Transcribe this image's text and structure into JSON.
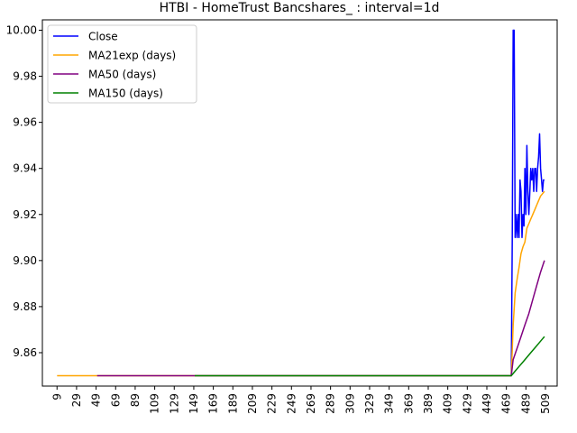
{
  "chart_data": {
    "type": "line",
    "title": "HTBI - HomeTrust Bancshares_ : interval=1d",
    "xlabel": "",
    "ylabel": "",
    "xlim": [
      -6,
      521
    ],
    "ylim": [
      9.8455,
      10.0045
    ],
    "x_ticks": [
      9,
      29,
      49,
      69,
      89,
      109,
      129,
      149,
      169,
      189,
      209,
      229,
      249,
      269,
      289,
      309,
      329,
      349,
      369,
      389,
      409,
      429,
      449,
      469,
      489,
      509
    ],
    "y_ticks": [
      9.86,
      9.88,
      9.9,
      9.92,
      9.94,
      9.96,
      9.98,
      10.0
    ],
    "y_tick_labels": [
      "9.86",
      "9.88",
      "9.90",
      "9.92",
      "9.94",
      "9.96",
      "9.98",
      "10.00"
    ],
    "grid": false,
    "legend": "top-left",
    "series": [
      {
        "name": "Close",
        "color": "#0000ff",
        "x": [
          474,
          475,
          476,
          477,
          478,
          479,
          480,
          481,
          482,
          483,
          484,
          485,
          486,
          487,
          488,
          489,
          490,
          491,
          492,
          493,
          494,
          495,
          496,
          497,
          498,
          499,
          500,
          501,
          502,
          503,
          504,
          505,
          506,
          507,
          508
        ],
        "values": [
          9.85,
          9.91,
          10.0,
          10.0,
          9.91,
          9.92,
          9.91,
          9.92,
          9.91,
          9.935,
          9.93,
          9.91,
          9.92,
          9.915,
          9.94,
          9.92,
          9.95,
          9.93,
          9.92,
          9.93,
          9.94,
          9.935,
          9.94,
          9.93,
          9.94,
          9.94,
          9.93,
          9.94,
          9.945,
          9.955,
          9.94,
          9.935,
          9.93,
          9.935,
          9.935
        ]
      },
      {
        "name": "MA21exp (days)",
        "color": "#ffa500",
        "x": [
          9,
          50,
          100,
          200,
          300,
          400,
          474,
          476,
          478,
          480,
          482,
          484,
          486,
          488,
          490,
          492,
          494,
          496,
          498,
          500,
          502,
          504,
          506,
          508
        ],
        "values": [
          9.85,
          9.85,
          9.85,
          9.85,
          9.85,
          9.85,
          9.85,
          9.872,
          9.886,
          9.892,
          9.897,
          9.903,
          9.906,
          9.908,
          9.914,
          9.916,
          9.918,
          9.92,
          9.922,
          9.924,
          9.926,
          9.928,
          9.929,
          9.93
        ]
      },
      {
        "name": "MA50 (days)",
        "color": "#800080",
        "x": [
          50,
          100,
          200,
          300,
          400,
          474,
          476,
          480,
          484,
          488,
          492,
          496,
          500,
          504,
          508
        ],
        "values": [
          9.85,
          9.85,
          9.85,
          9.85,
          9.85,
          9.85,
          9.857,
          9.862,
          9.867,
          9.872,
          9.877,
          9.883,
          9.889,
          9.895,
          9.9
        ]
      },
      {
        "name": "MA150 (days)",
        "color": "#008000",
        "x": [
          150,
          200,
          300,
          400,
          474,
          478,
          482,
          486,
          490,
          494,
          498,
          502,
          506,
          508
        ],
        "values": [
          9.85,
          9.85,
          9.85,
          9.85,
          9.85,
          9.852,
          9.854,
          9.856,
          9.858,
          9.86,
          9.862,
          9.864,
          9.866,
          9.867
        ]
      }
    ]
  }
}
